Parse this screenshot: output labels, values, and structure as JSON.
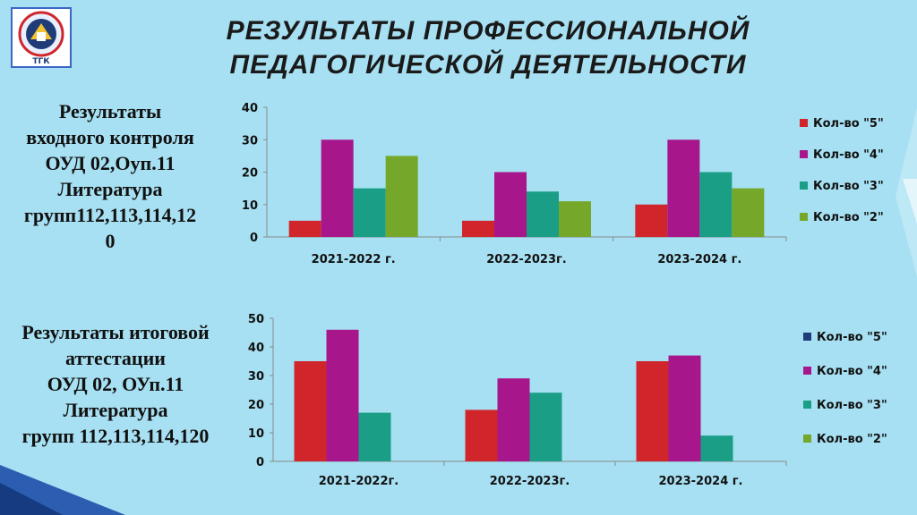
{
  "header": {
    "title_line1": "РЕЗУЛЬТАТЫ ПРОФЕССИОНАЛЬНОЙ",
    "title_line2": "ПЕДАГОГИЧЕСКОЙ ДЕЯТЕЛЬНОСТИ",
    "logo_text": "ТГК"
  },
  "captions": {
    "chart1": [
      "Результаты",
      "входного контроля",
      "ОУД 02,Оуп.11",
      "Литература",
      "групп112,113,114,12",
      "0"
    ],
    "chart2": [
      "Результаты итоговой",
      "аттестации",
      "ОУД 02, ОУп.11",
      "Литература",
      "групп 112,113,114,120"
    ]
  },
  "colors": {
    "background": "#a7e0f2",
    "title": "#1a1a1a",
    "accent_stripe": "#1e4fa8"
  },
  "chart_data": [
    {
      "type": "bar",
      "categories": [
        "2021-2022 г.",
        "2022-2023г.",
        "2023-2024 г."
      ],
      "series": [
        {
          "name": "Кол-во \"5\"",
          "color": "#d0262b",
          "values": [
            5,
            5,
            10
          ]
        },
        {
          "name": "Кол-во \"4\"",
          "color": "#a8168c",
          "values": [
            30,
            20,
            30
          ]
        },
        {
          "name": "Кол-во \"3\"",
          "color": "#1a9e86",
          "values": [
            15,
            14,
            20
          ]
        },
        {
          "name": "Кол-во \"2\"",
          "color": "#74a72a",
          "values": [
            25,
            11,
            15
          ]
        }
      ],
      "ylim": [
        0,
        40
      ],
      "yticks": [
        0,
        10,
        20,
        30,
        40
      ],
      "grid": false,
      "legend": "right"
    },
    {
      "type": "bar",
      "categories": [
        "2021-2022г.",
        "2022-2023г.",
        "2023-2024 г."
      ],
      "series": [
        {
          "name": "Кол-во \"5\"",
          "color": "#d0262b",
          "legend_color": "#1f3c78",
          "values": [
            35,
            18,
            35
          ]
        },
        {
          "name": "Кол-во \"4\"",
          "color": "#a8168c",
          "values": [
            46,
            29,
            37
          ]
        },
        {
          "name": "Кол-во \"3\"",
          "color": "#1a9e86",
          "values": [
            17,
            24,
            9
          ]
        },
        {
          "name": "Кол-во \"2\"",
          "color": "#74a72a",
          "values": [
            0,
            0,
            0
          ]
        }
      ],
      "ylim": [
        0,
        50
      ],
      "yticks": [
        0,
        10,
        20,
        30,
        40,
        50
      ],
      "grid": false,
      "legend": "right"
    }
  ]
}
